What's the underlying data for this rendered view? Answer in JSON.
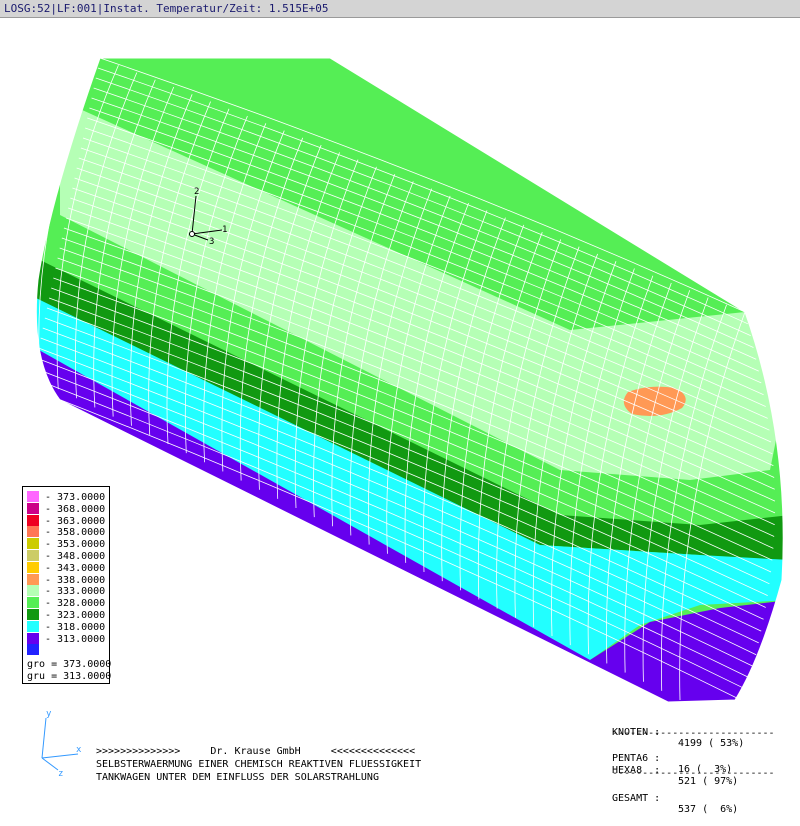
{
  "header": {
    "title": "LOSG:52|LF:001|Instat. Temperatur/Zeit: 1.515E+05"
  },
  "legend": {
    "entries": [
      {
        "value": "373.0000",
        "color": "#ff66ff"
      },
      {
        "value": "368.0000",
        "color": "#cc0088"
      },
      {
        "value": "363.0000",
        "color": "#ee0022"
      },
      {
        "value": "358.0000",
        "color": "#ff7755"
      },
      {
        "value": "353.0000",
        "color": "#cccc00"
      },
      {
        "value": "348.0000",
        "color": "#cccc66"
      },
      {
        "value": "343.0000",
        "color": "#ffcc00"
      },
      {
        "value": "338.0000",
        "color": "#ff9955"
      },
      {
        "value": "333.0000",
        "color": "#b5ffb5"
      },
      {
        "value": "328.0000",
        "color": "#55ee55"
      },
      {
        "value": "323.0000",
        "color": "#119911"
      },
      {
        "value": "318.0000",
        "color": "#22ffff"
      },
      {
        "value": "313.0000",
        "color": "#6600ee"
      },
      {
        "value": "",
        "color": "#2222ff"
      }
    ],
    "gro": "gro = 373.0000",
    "gru": "gru = 313.0000"
  },
  "axes_triad": {
    "label_1": "1",
    "label_2": "2",
    "label_3": "3",
    "origin": "0"
  },
  "small_axes": {
    "label_x": "x",
    "label_y": "y",
    "label_z": "z"
  },
  "stats": {
    "knoten_label": "KNOTEN :",
    "knoten_value": "4199 ( 53%)",
    "separator": "---------------------------",
    "penta_label": "PENTA6 :",
    "penta_value": "16 (  3%)",
    "hexa_label": "HEXA8  :",
    "hexa_value": "521 ( 97%)",
    "gesamt_label": "GESAMT :",
    "gesamt_value": "537 (  6%)"
  },
  "footer": {
    "line1": ">>>>>>>>>>>>>>     Dr. Krause GmbH     <<<<<<<<<<<<<<",
    "line2": "SELBSTERWAERMUNG EINER CHEMISCH REAKTIVEN FLUESSIGKEIT",
    "line3": "TANKWAGEN UNTER DEM EINFLUSS DER SOLARSTRAHLUNG"
  },
  "colors": {
    "band_333": "#b5ffb5",
    "band_328": "#55ee55",
    "band_323": "#119911",
    "band_318": "#22ffff",
    "band_313": "#6600ee",
    "hotspot_338": "#ff9955",
    "mesh": "#ffffff"
  }
}
